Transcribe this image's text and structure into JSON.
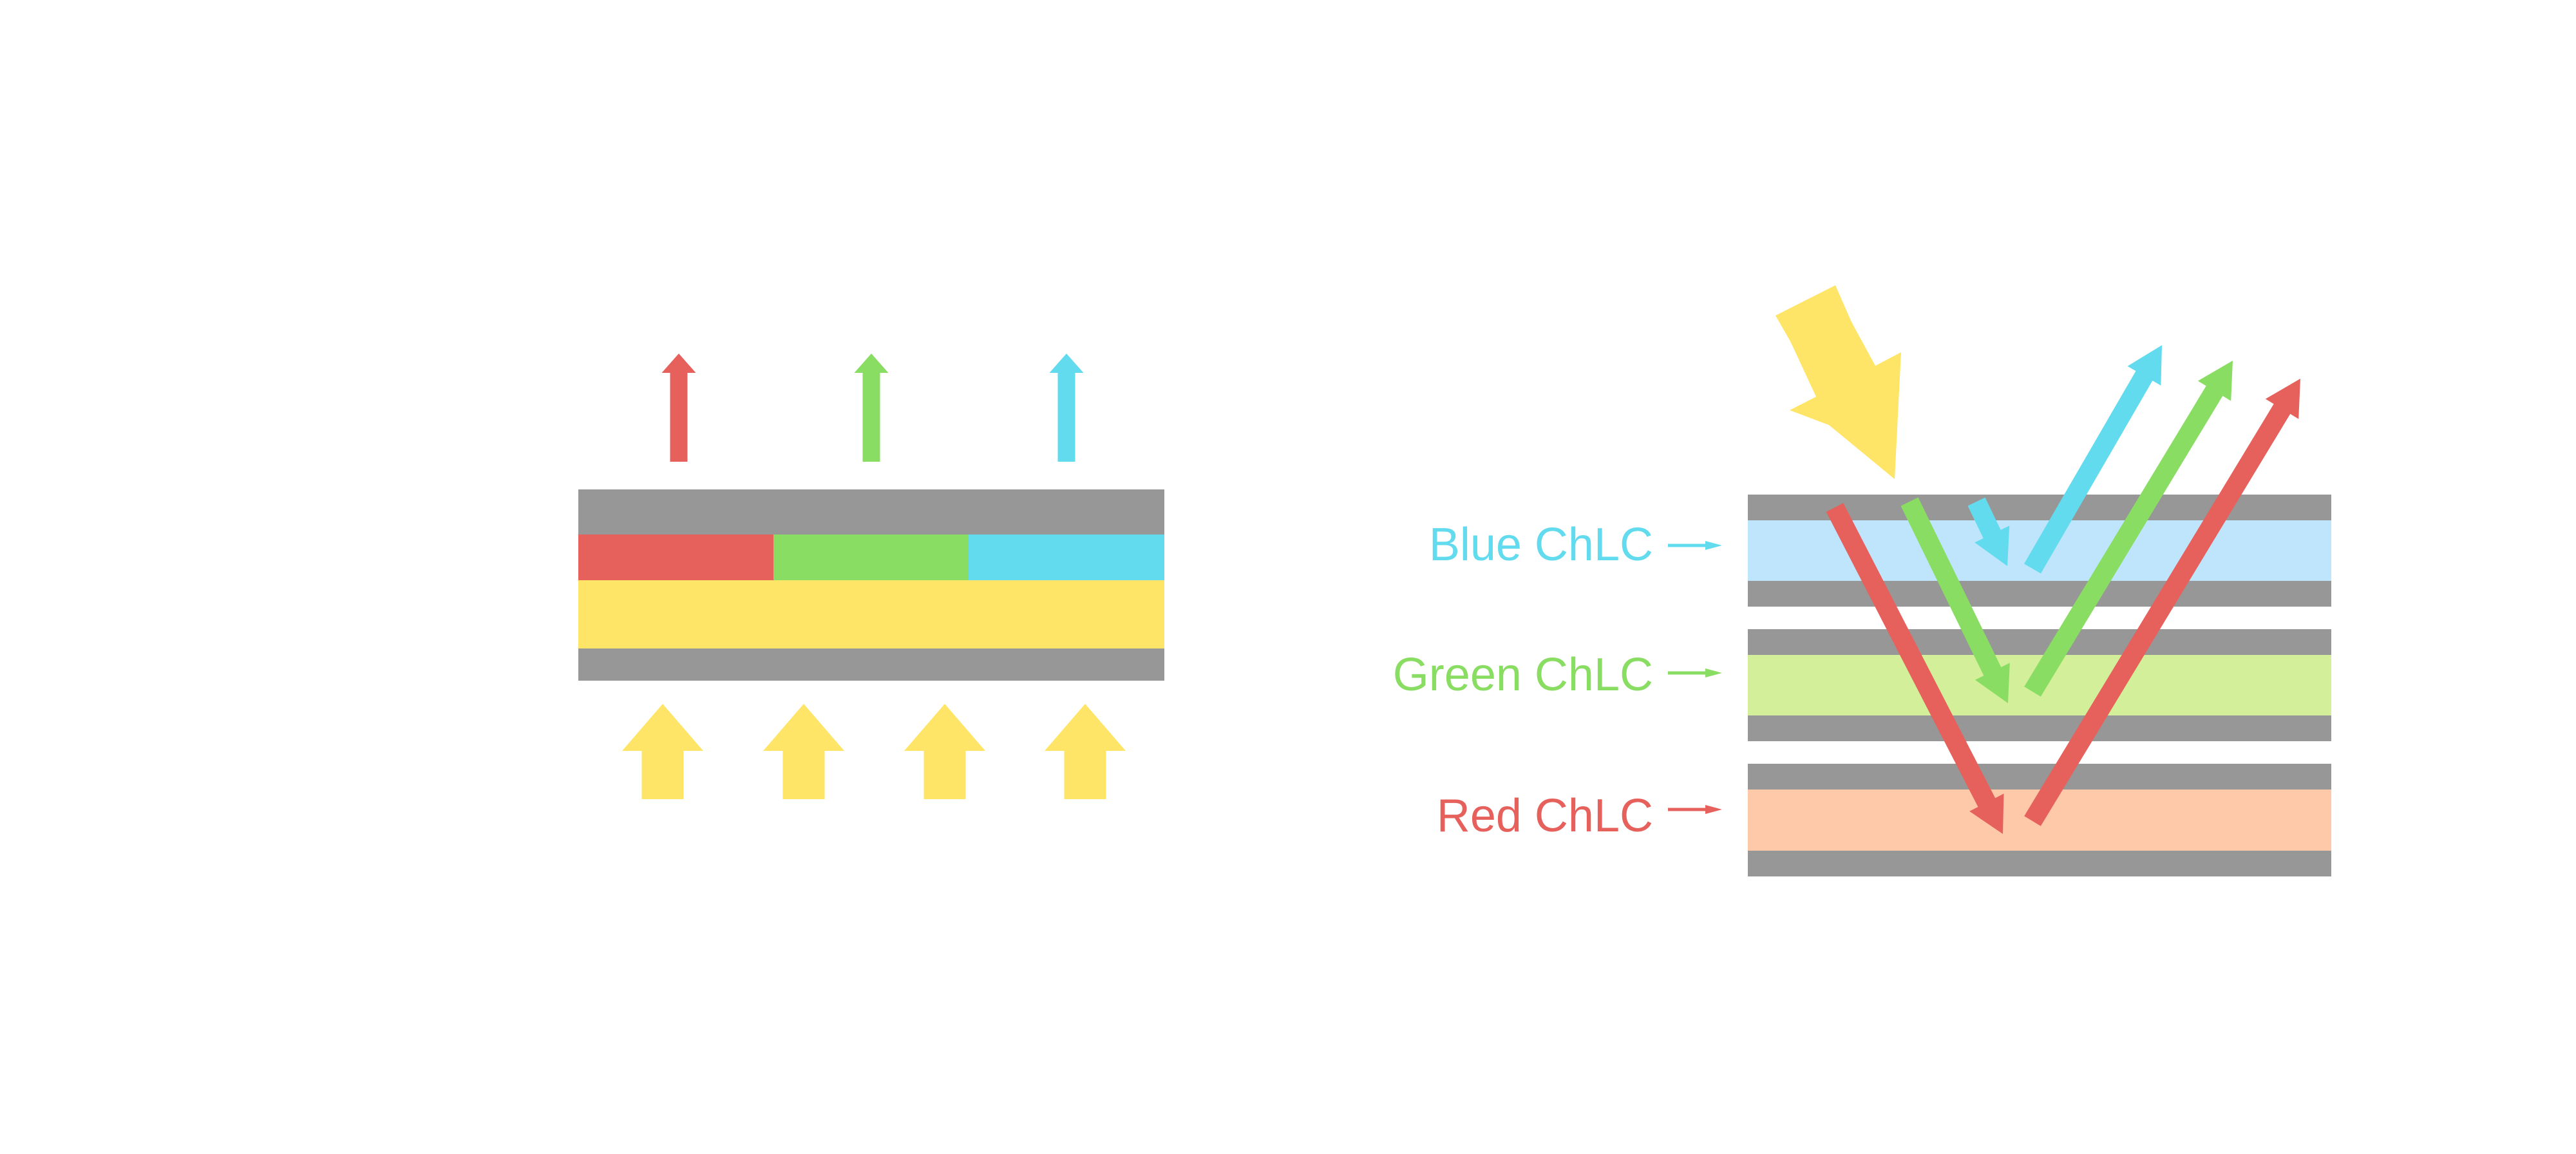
{
  "colors": {
    "background": "#FFFFFF",
    "gray_layer": "#979797",
    "red": "#E6605C",
    "green": "#8ADD63",
    "blue": "#63DBEE",
    "yellow": "#FEE567",
    "blue_band": "#BEE5FC",
    "green_band": "#D4EF9A",
    "red_band": "#FDC9A9"
  },
  "right_diagram": {
    "labels": {
      "blue": "Blue ChLC",
      "green": "Green ChLC",
      "red": "Red ChLC"
    }
  }
}
